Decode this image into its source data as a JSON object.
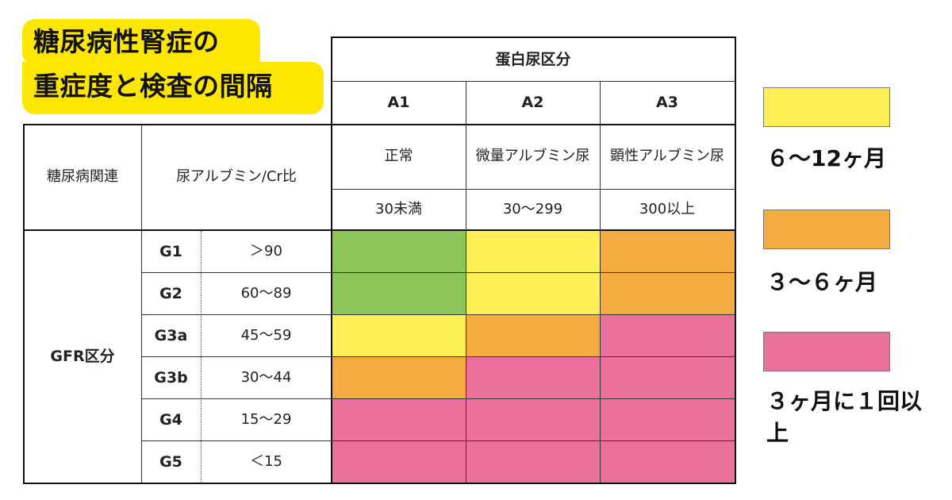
{
  "title": {
    "line1": "糖尿病性腎症の",
    "line2": "重症度と検査の間隔"
  },
  "colors": {
    "green": "#8cc55a",
    "yellow": "#fdef55",
    "orange": "#f4ab3f",
    "pink": "#eb709c"
  },
  "table": {
    "protein_header": "蛋白尿区分",
    "columns": [
      {
        "code": "A1",
        "label": "正常",
        "range": "30未満"
      },
      {
        "code": "A2",
        "label": "微量アルブミン尿",
        "range": "30〜299"
      },
      {
        "code": "A3",
        "label": "顕性アルブミン尿",
        "range": "300以上"
      }
    ],
    "diabetes_label": "糖尿病関連",
    "albumin_label": "尿アルブミン/Cr比",
    "gfr_label": "GFR区分",
    "rows": [
      {
        "stage": "G1",
        "range": "＞90",
        "cells": [
          "green",
          "yellow",
          "orange"
        ]
      },
      {
        "stage": "G2",
        "range": "60〜89",
        "cells": [
          "green",
          "yellow",
          "orange"
        ]
      },
      {
        "stage": "G3a",
        "range": "45〜59",
        "cells": [
          "yellow",
          "orange",
          "pink"
        ]
      },
      {
        "stage": "G3b",
        "range": "30〜44",
        "cells": [
          "orange",
          "pink",
          "pink"
        ]
      },
      {
        "stage": "G4",
        "range": "15〜29",
        "cells": [
          "pink",
          "pink",
          "pink"
        ]
      },
      {
        "stage": "G5",
        "range": "＜15",
        "cells": [
          "pink",
          "pink",
          "pink"
        ]
      }
    ]
  },
  "legend": [
    {
      "color": "yellow",
      "label": "６〜12ヶ月"
    },
    {
      "color": "orange",
      "label": "３〜６ヶ月"
    },
    {
      "color": "pink",
      "label": "３ヶ月に１回以上"
    }
  ]
}
